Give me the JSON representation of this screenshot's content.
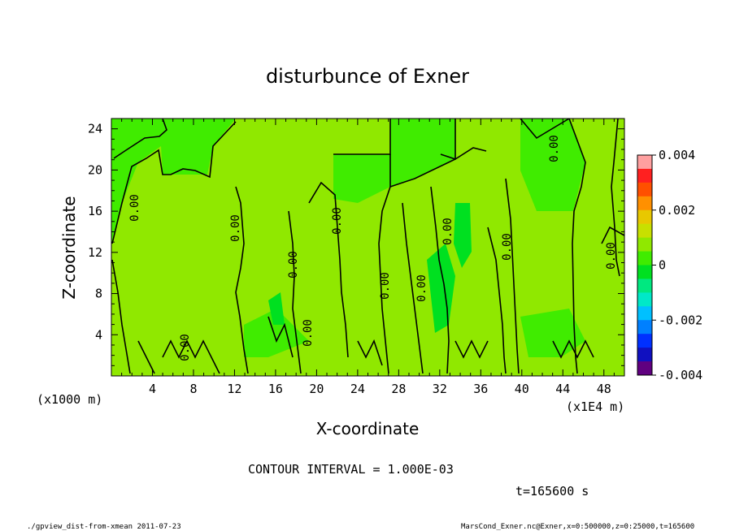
{
  "chart_data": {
    "type": "heatmap",
    "title": "disturbunce of Exner",
    "xlabel": "X-coordinate",
    "ylabel": "Z-coordinate",
    "x_unit": "(x1E4 m)",
    "x_extra_unit": "(x1000 m)",
    "xlim": [
      0,
      50
    ],
    "ylim": [
      0,
      25
    ],
    "x_ticks": [
      "4",
      "8",
      "12",
      "16",
      "20",
      "24",
      "28",
      "32",
      "36",
      "40",
      "44",
      "48"
    ],
    "y_ticks": [
      "4",
      "8",
      "12",
      "16",
      "20",
      "24"
    ],
    "colorbar": {
      "ticks": [
        "0.004",
        "0.002",
        "0",
        "-0.002",
        "-0.004"
      ],
      "range": [
        -0.004,
        0.004
      ],
      "colors": [
        "#ffa0a0",
        "#ff2020",
        "#ff5000",
        "#ff9000",
        "#e8c800",
        "#c8e000",
        "#90e800",
        "#40ec00",
        "#00e020",
        "#00e880",
        "#00e8c8",
        "#00c0ff",
        "#0080ff",
        "#0030ff",
        "#1010c0",
        "#600080"
      ]
    },
    "contour_level": 0,
    "contour_labels": [
      "0.00",
      "0.00",
      "0.00",
      "0.00",
      "0.00",
      "0.00",
      "0.00",
      "0.00",
      "0.00",
      "0.00",
      "0.00",
      "0.00"
    ],
    "background_colors": {
      "positive_small": "#90e800",
      "zero": "#40ec00",
      "negative_small": "#00e020"
    }
  },
  "annotations": {
    "contour_interval": "CONTOUR INTERVAL = 1.000E-03",
    "time": "t=165600 s",
    "footer_left": "./gpview_dist-from-xmean  2011-07-23",
    "footer_right": "MarsCond_Exner.nc@Exner,x=0:500000,z=0:25000,t=165600"
  }
}
